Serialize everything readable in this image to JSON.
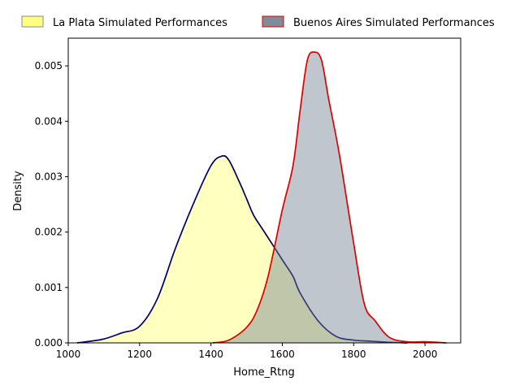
{
  "chart_data": {
    "type": "area",
    "title": "",
    "xlabel": "Home_Rtng",
    "ylabel": "Density",
    "xlim": [
      1000,
      2100
    ],
    "ylim": [
      0,
      0.0055
    ],
    "xticks": [
      1000,
      1200,
      1400,
      1600,
      1800,
      2000
    ],
    "yticks": [
      0.0,
      0.001,
      0.002,
      0.003,
      0.004,
      0.005
    ],
    "ytick_labels": [
      "0.000",
      "0.001",
      "0.002",
      "0.003",
      "0.004",
      "0.005"
    ],
    "grid": false,
    "legend": {
      "placement": "top, outside axes",
      "columns": 2
    },
    "series": [
      {
        "name": "La Plata Simulated Performances",
        "fill": "#ffff80",
        "fill_opacity": 0.5,
        "line": "#000066",
        "legend_edge": "#8a8a8a",
        "x": [
          1025,
          1050,
          1100,
          1150,
          1200,
          1250,
          1300,
          1350,
          1400,
          1430,
          1450,
          1480,
          1500,
          1520,
          1550,
          1600,
          1630,
          1650,
          1700,
          1750,
          1800,
          1850,
          1900,
          1950
        ],
        "y": [
          0.0,
          2e-05,
          7e-05,
          0.00018,
          0.0003,
          0.0008,
          0.0017,
          0.0025,
          0.0032,
          0.00337,
          0.0033,
          0.0029,
          0.0026,
          0.0023,
          0.002,
          0.0015,
          0.0012,
          0.0009,
          0.0004,
          0.00012,
          5e-05,
          3e-05,
          1e-05,
          0.0
        ]
      },
      {
        "name": "Buenos Aires Simulated Performances",
        "fill": "#708090",
        "fill_opacity": 0.45,
        "line": "#dd0000",
        "legend_edge": "#dd0000",
        "x": [
          1405,
          1450,
          1500,
          1530,
          1560,
          1600,
          1630,
          1650,
          1670,
          1690,
          1710,
          1730,
          1760,
          1800,
          1830,
          1860,
          1900,
          1950,
          2000,
          2060
        ],
        "y": [
          0.0,
          5e-05,
          0.00028,
          0.0006,
          0.0012,
          0.0024,
          0.0032,
          0.0042,
          0.0051,
          0.00525,
          0.0051,
          0.0044,
          0.0034,
          0.0018,
          0.0007,
          0.0004,
          0.0001,
          2e-05,
          2e-05,
          0.0
        ]
      }
    ]
  }
}
